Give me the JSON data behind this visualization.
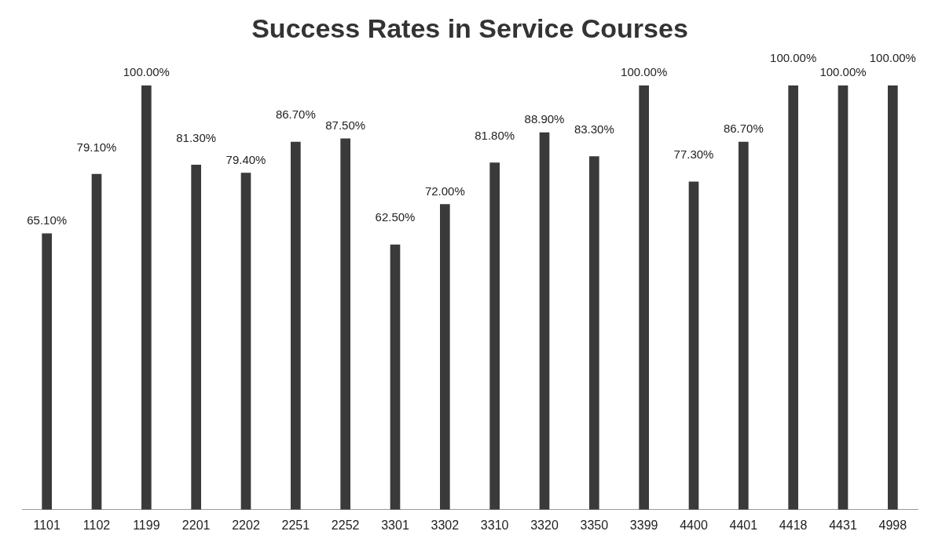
{
  "chart_data": {
    "type": "bar",
    "title": "Success Rates in Service Courses",
    "categories": [
      "1101",
      "1102",
      "1199",
      "2201",
      "2202",
      "2251",
      "2252",
      "3301",
      "3302",
      "3310",
      "3320",
      "3350",
      "3399",
      "4400",
      "4401",
      "4418",
      "4431",
      "4998"
    ],
    "values": [
      65.1,
      79.1,
      100,
      81.3,
      79.4,
      86.7,
      87.5,
      62.5,
      72,
      81.8,
      88.9,
      83.3,
      100,
      77.3,
      86.7,
      100,
      100,
      100
    ],
    "value_labels": [
      "65.10%",
      "79.10%",
      "100.00%",
      "81.30%",
      "79.40%",
      "86.70%",
      "87.50%",
      "62.50%",
      "72.00%",
      "81.80%",
      "88.90%",
      "83.30%",
      "100.00%",
      "77.30%",
      "86.70%",
      "100.00%",
      "100.00%",
      "100.00%"
    ],
    "color": "#3a3a3a",
    "ylim": [
      0,
      100
    ],
    "tick_labels": "x",
    "grid": false,
    "legend": false
  }
}
